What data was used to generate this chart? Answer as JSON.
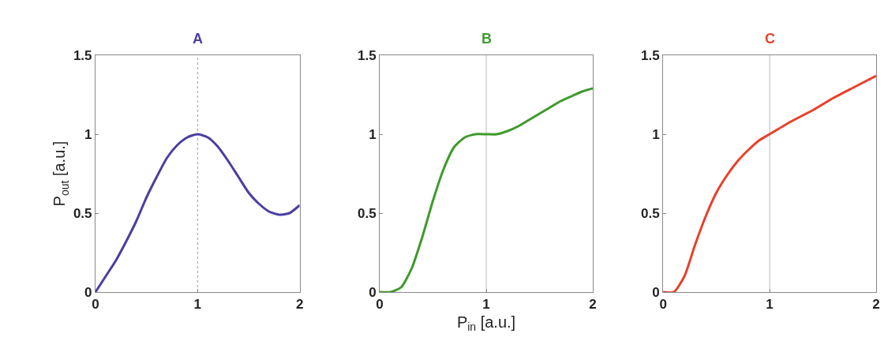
{
  "chart_data": [
    {
      "type": "line",
      "title": "A",
      "ylabel": "P$_{out}$ [a.u.]",
      "tick_labels": "xy",
      "x": [
        0,
        0.1,
        0.2,
        0.3,
        0.4,
        0.5,
        0.6,
        0.7,
        0.8,
        0.9,
        1.0,
        1.1,
        1.2,
        1.3,
        1.4,
        1.5,
        1.6,
        1.7,
        1.8,
        1.9,
        2.0
      ],
      "series": [
        {
          "color": "#4a3fa0",
          "values": [
            0,
            0.1,
            0.2,
            0.32,
            0.45,
            0.6,
            0.73,
            0.85,
            0.93,
            0.98,
            1.0,
            0.98,
            0.92,
            0.83,
            0.73,
            0.63,
            0.56,
            0.51,
            0.49,
            0.5,
            0.55
          ]
        }
      ],
      "xlim": [
        0,
        2
      ],
      "xticks": [
        0,
        1,
        2
      ],
      "ylim": [
        0,
        1.5
      ],
      "yticks": [
        0,
        0.5,
        1,
        1.5
      ],
      "grid": false,
      "ref_lines": [
        {
          "axis": "x",
          "value": 1,
          "color": "#999999",
          "line_style": "dotted"
        }
      ]
    },
    {
      "type": "line",
      "title": "B",
      "xlabel": "P$_{in}$ [a.u.]",
      "x": [
        0,
        0.1,
        0.2,
        0.3,
        0.4,
        0.5,
        0.6,
        0.7,
        0.8,
        0.9,
        1.0,
        1.1,
        1.2,
        1.3,
        1.4,
        1.5,
        1.6,
        1.7,
        1.8,
        1.9,
        2.0
      ],
      "series": [
        {
          "color": "#3f9a2c",
          "values": [
            0,
            0,
            0.03,
            0.15,
            0.35,
            0.58,
            0.78,
            0.92,
            0.98,
            1.0,
            1.0,
            1.0,
            1.02,
            1.05,
            1.09,
            1.13,
            1.17,
            1.21,
            1.24,
            1.27,
            1.29
          ]
        }
      ],
      "xlim": [
        0,
        2
      ],
      "xticks": [
        0,
        1,
        2
      ],
      "ylim": [
        0,
        1.5
      ],
      "yticks": [
        0,
        0.5,
        1,
        1.5
      ],
      "grid": false,
      "ref_lines": [
        {
          "axis": "x",
          "value": 1,
          "color": "#bbbbbb",
          "line_style": "solid"
        }
      ]
    },
    {
      "type": "line",
      "title": "C",
      "x": [
        0,
        0.1,
        0.2,
        0.3,
        0.4,
        0.5,
        0.6,
        0.7,
        0.8,
        0.9,
        1.0,
        1.2,
        1.4,
        1.6,
        1.8,
        2.0
      ],
      "series": [
        {
          "color": "#e8402a",
          "values": [
            0,
            0,
            0.1,
            0.3,
            0.48,
            0.63,
            0.74,
            0.83,
            0.9,
            0.96,
            1.0,
            1.08,
            1.15,
            1.23,
            1.3,
            1.37
          ]
        }
      ],
      "xlim": [
        0,
        2
      ],
      "xticks": [
        0,
        1,
        2
      ],
      "ylim": [
        0,
        1.5
      ],
      "yticks": [
        0,
        0.5,
        1,
        1.5
      ],
      "grid": false,
      "ref_lines": [
        {
          "axis": "x",
          "value": 1,
          "color": "#bbbbbb",
          "line_style": "solid"
        }
      ]
    }
  ]
}
